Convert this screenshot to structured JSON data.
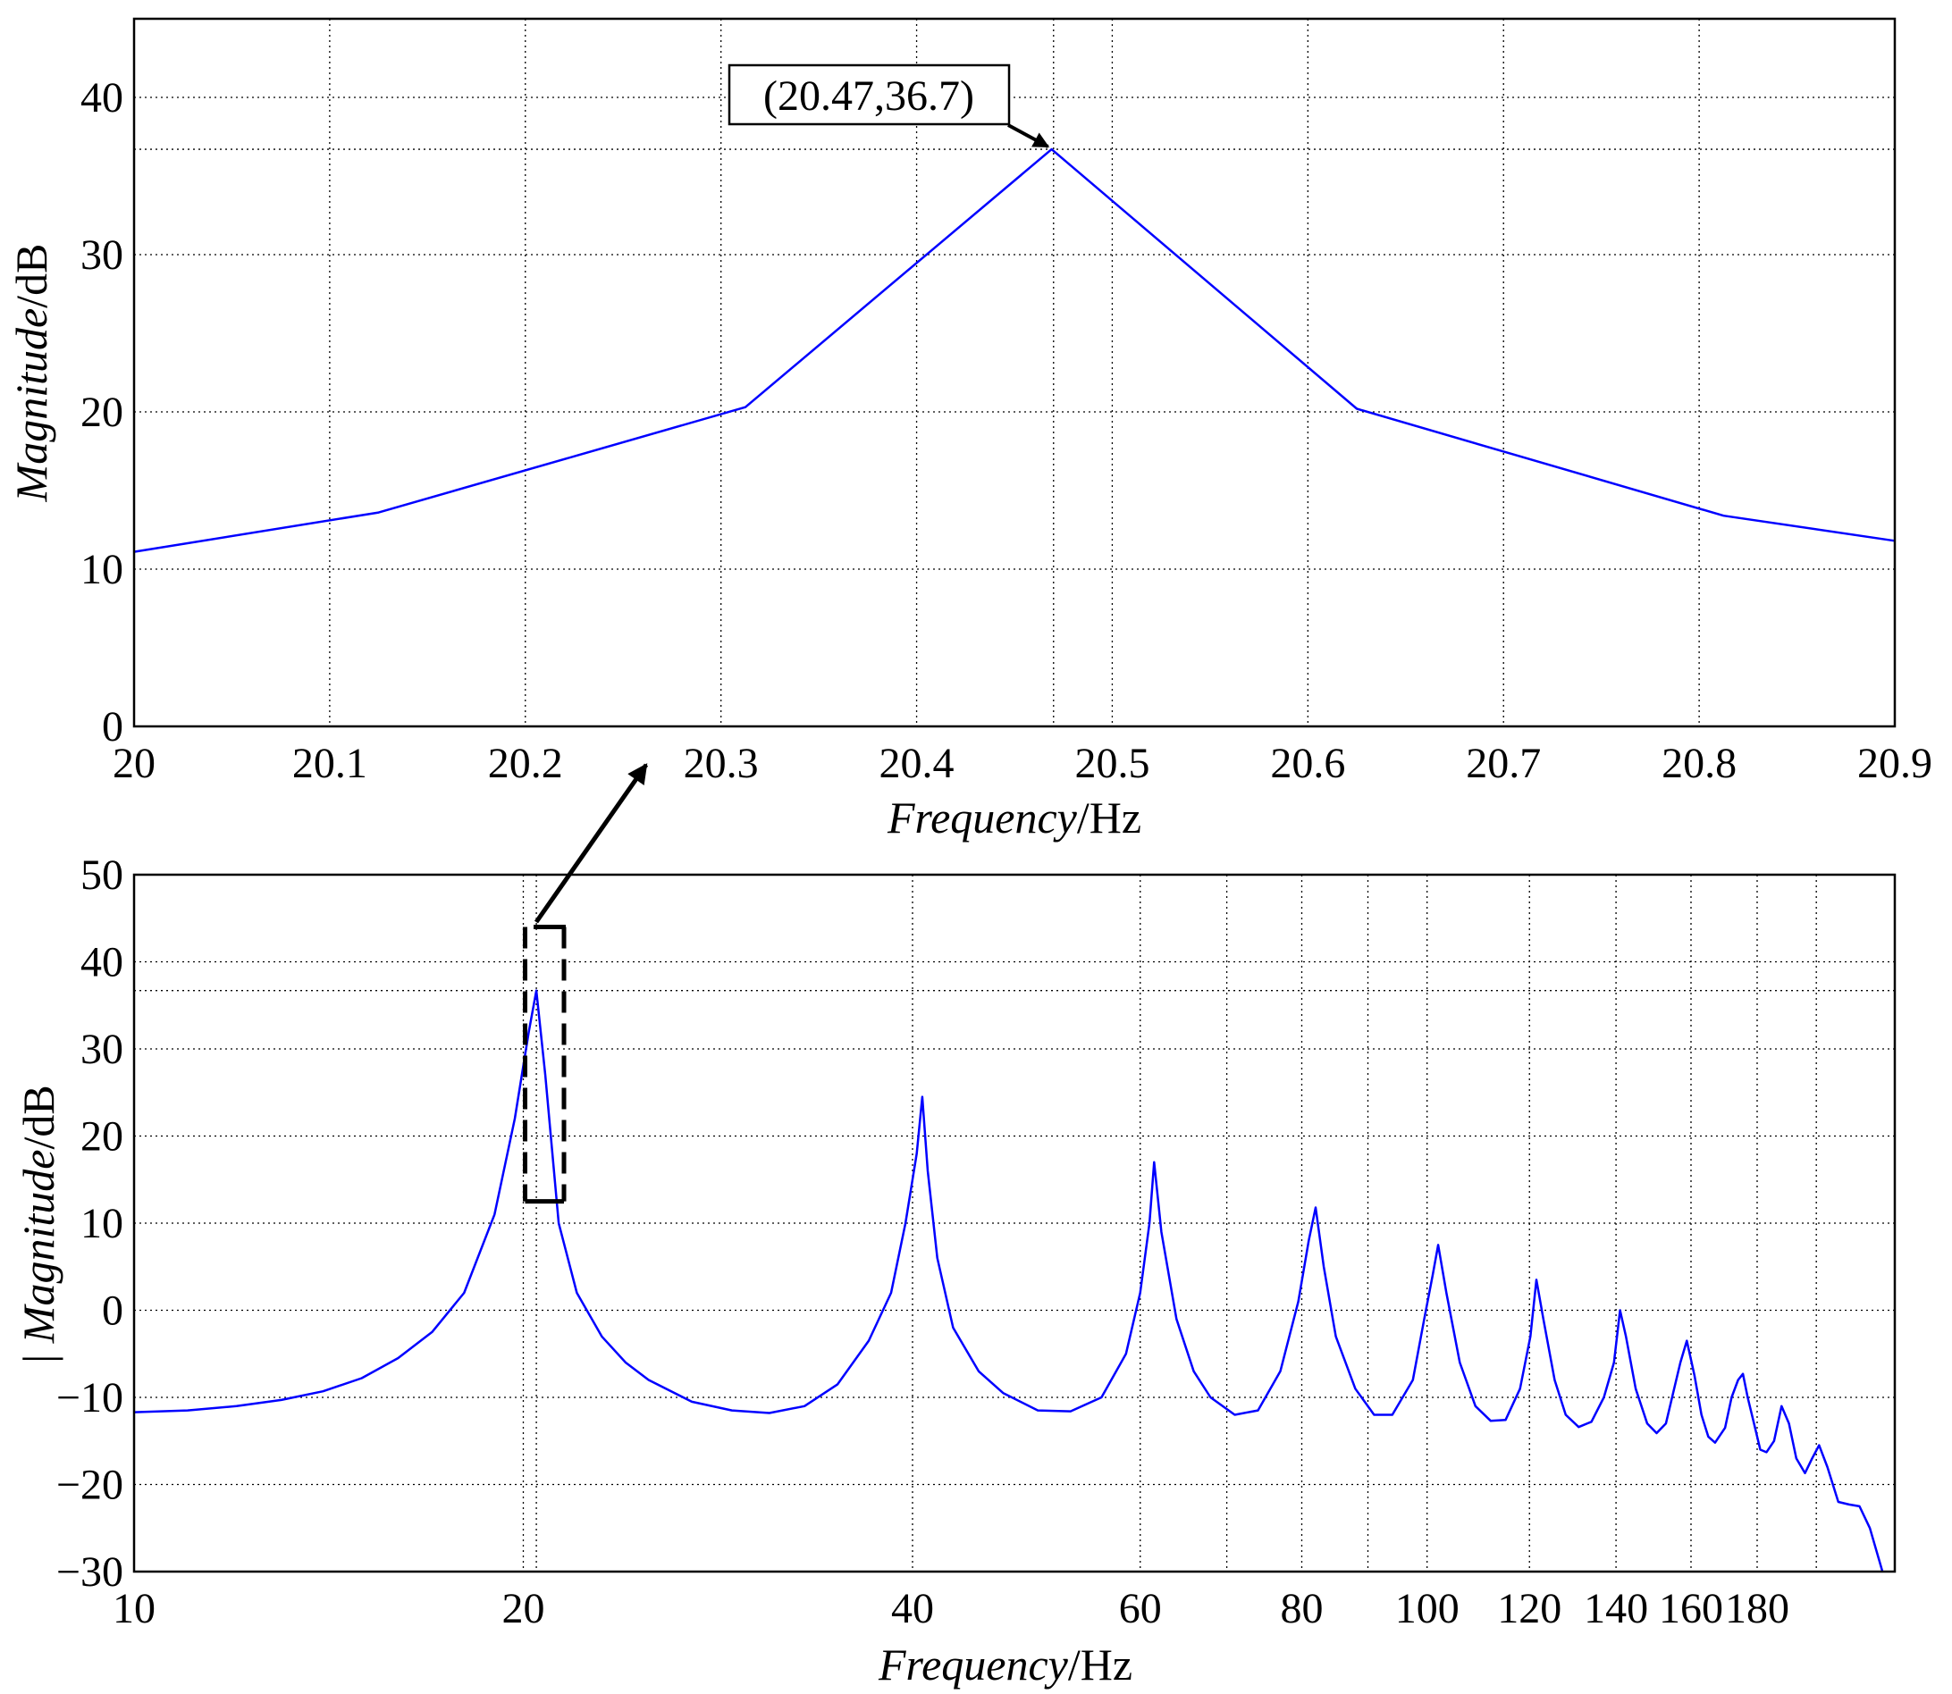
{
  "chart_data": [
    {
      "type": "line",
      "panel": "top",
      "xlabel_italic": "Frequency",
      "xlabel_unit": "/Hz",
      "ylabel_italic": "Magnitude",
      "ylabel_unit": "/dB",
      "xlim": [
        20,
        20.9
      ],
      "ylim": [
        0,
        45
      ],
      "xticks": [
        20,
        20.1,
        20.2,
        20.3,
        20.4,
        20.5,
        20.6,
        20.7,
        20.8,
        20.9
      ],
      "xtick_labels": [
        "20",
        "20.1",
        "20.2",
        "20.3",
        "20.4",
        "20.5",
        "20.6",
        "20.7",
        "20.8",
        "20.9"
      ],
      "yticks": [
        0,
        10,
        20,
        30,
        40
      ],
      "ytick_labels": [
        "0",
        "10",
        "20",
        "30",
        "40"
      ],
      "grid": true,
      "series": [
        {
          "color": "#0000ff",
          "x": [
            20.0,
            20.125,
            20.3125,
            20.469,
            20.625,
            20.8125,
            20.9
          ],
          "y": [
            11.1,
            13.6,
            20.3,
            36.7,
            20.2,
            13.4,
            11.8
          ]
        }
      ],
      "extra_vlines": [
        20.47
      ],
      "extra_hlines": [
        36.7
      ],
      "annotation": {
        "text": "(20.47,36.7)",
        "x": 20.469,
        "y": 36.7
      }
    },
    {
      "type": "line",
      "panel": "bottom",
      "xscale": "log",
      "xlabel_italic": "Frequency",
      "xlabel_unit": "/Hz",
      "ylabel_prefix": "|",
      "ylabel_italic": "Magnitude",
      "ylabel_unit": "/dB",
      "xlim": [
        10,
        230
      ],
      "ylim": [
        -30,
        50
      ],
      "xticks": [
        10,
        20,
        40,
        60,
        80,
        100,
        120,
        140,
        160,
        180
      ],
      "xtick_labels": [
        "10",
        "20",
        "40",
        "60",
        "80",
        "100",
        "120",
        "140",
        "160",
        "180"
      ],
      "minor_xgrid": [
        70,
        90,
        200
      ],
      "yticks": [
        -30,
        -20,
        -10,
        0,
        10,
        20,
        30,
        40,
        50
      ],
      "ytick_labels": [
        "−30",
        "−20",
        "−10",
        "0",
        "10",
        "20",
        "30",
        "40",
        "50"
      ],
      "grid": true,
      "series": [
        {
          "color": "#0000ff",
          "x": [
            10,
            11,
            12,
            13,
            14,
            15,
            16,
            17,
            18,
            19,
            19.7,
            20.2,
            20.47,
            20.8,
            21.3,
            22,
            23,
            24,
            25,
            27,
            29,
            31,
            33,
            35,
            37,
            38.5,
            39.5,
            40.3,
            40.7,
            41.1,
            41.8,
            43,
            45,
            47,
            50,
            53,
            56,
            58.5,
            60,
            61,
            61.5,
            62.3,
            64,
            66,
            68,
            71,
            74,
            77,
            79.5,
            81,
            82,
            83.2,
            85,
            88,
            91,
            94,
            97.5,
            99.5,
            101,
            102,
            103.5,
            106,
            109,
            112,
            115,
            118,
            120.2,
            121.5,
            123,
            125.5,
            128,
            131,
            134,
            137,
            139.5,
            141,
            142.5,
            145,
            148,
            150.5,
            153,
            155,
            157,
            158.8,
            161,
            163,
            165,
            167,
            170,
            172,
            174,
            175.5,
            177,
            179,
            181,
            183,
            185.5,
            188,
            190.5,
            193,
            196,
            198.5,
            201,
            204,
            208,
            212,
            216,
            220,
            225,
            229
          ],
          "y": [
            -11.7,
            -11.5,
            -11.0,
            -10.3,
            -9.3,
            -7.8,
            -5.5,
            -2.5,
            2.0,
            11.0,
            22.0,
            32.0,
            36.7,
            27.0,
            10.0,
            2.0,
            -3.0,
            -6.0,
            -8.0,
            -10.5,
            -11.5,
            -11.8,
            -11.0,
            -8.5,
            -3.5,
            2.0,
            10.0,
            18.0,
            24.5,
            16.0,
            6.0,
            -2.0,
            -7.0,
            -9.5,
            -11.5,
            -11.6,
            -10.0,
            -5.0,
            2.0,
            10.0,
            17.0,
            9.0,
            -1.0,
            -7.0,
            -10.0,
            -12.0,
            -11.5,
            -7.0,
            1.0,
            8.0,
            11.8,
            5.0,
            -3.0,
            -9.0,
            -12.0,
            -12.0,
            -8.0,
            -1.0,
            4.0,
            7.5,
            2.0,
            -6.0,
            -11.0,
            -12.7,
            -12.6,
            -9.0,
            -3.0,
            3.5,
            -1.0,
            -8.0,
            -12.0,
            -13.4,
            -12.8,
            -10.0,
            -6.0,
            0.0,
            -3.0,
            -9.0,
            -13.0,
            -14.1,
            -13.0,
            -9.5,
            -6.0,
            -3.5,
            -7.5,
            -12.0,
            -14.5,
            -15.2,
            -13.5,
            -10.0,
            -8.0,
            -7.3,
            -10.0,
            -13.0,
            -16.0,
            -16.3,
            -15.0,
            -11.0,
            -13.0,
            -17.0,
            -18.7,
            -17.0,
            -15.5,
            -18.0,
            -22.0,
            -22.3,
            -22.5,
            -25.0,
            -30.0,
            -31.0
          ]
        }
      ],
      "extra_vlines": [
        20.47
      ],
      "extra_hlines": [
        36.7
      ],
      "zoom_box": {
        "x0": 20,
        "x1": 21.4,
        "y_top": 44,
        "y_bottom": 12.5
      }
    }
  ]
}
